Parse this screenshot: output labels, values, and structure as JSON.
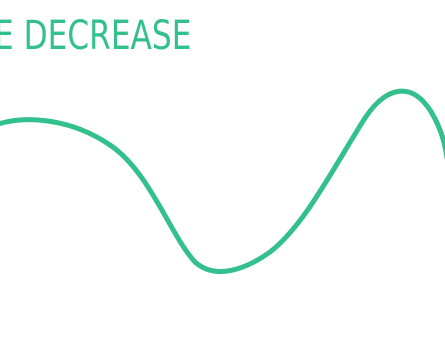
{
  "heading": {
    "text": "E DECREASE"
  },
  "colors": {
    "accent": "#33c08c",
    "background": "#ffffff"
  },
  "wave": {
    "shape": "smooth-wave",
    "color": "#33c08c"
  }
}
